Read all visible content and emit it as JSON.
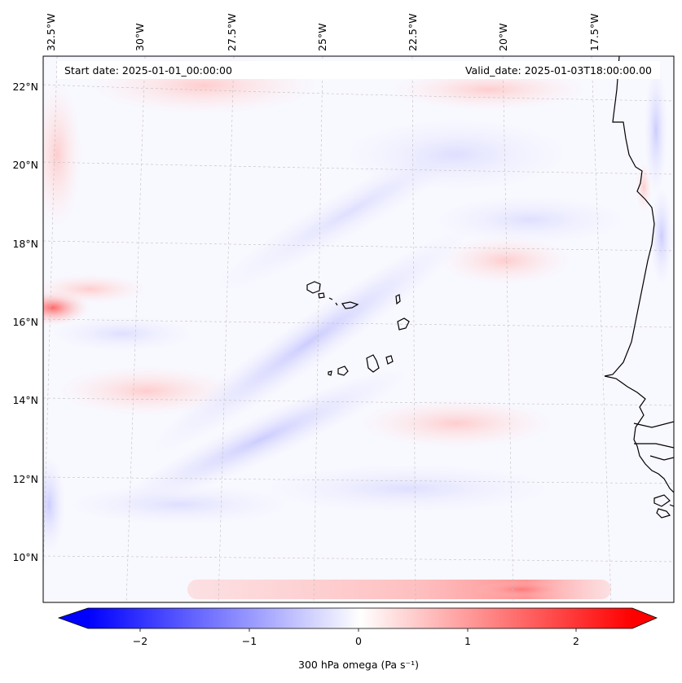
{
  "map": {
    "start_label": "Start date: 2025-01-01_00:00:00",
    "valid_label": "Valid_date: 2025-01-03T18:00:00.00",
    "lon_labels": [
      "32.5°W",
      "30°W",
      "27.5°W",
      "25°W",
      "22.5°W",
      "20°W",
      "17.5°W"
    ],
    "lat_labels": [
      "22°N",
      "20°N",
      "18°N",
      "16°N",
      "14°N",
      "12°N",
      "10°N"
    ],
    "field_colors": {
      "negative": "#0000ff",
      "neutral": "#ffffff",
      "positive": "#ff0000"
    }
  },
  "colorbar": {
    "ticks": [
      "−2",
      "−1",
      "0",
      "1",
      "2"
    ],
    "label": "300 hPa omega (Pa s⁻¹)"
  }
}
